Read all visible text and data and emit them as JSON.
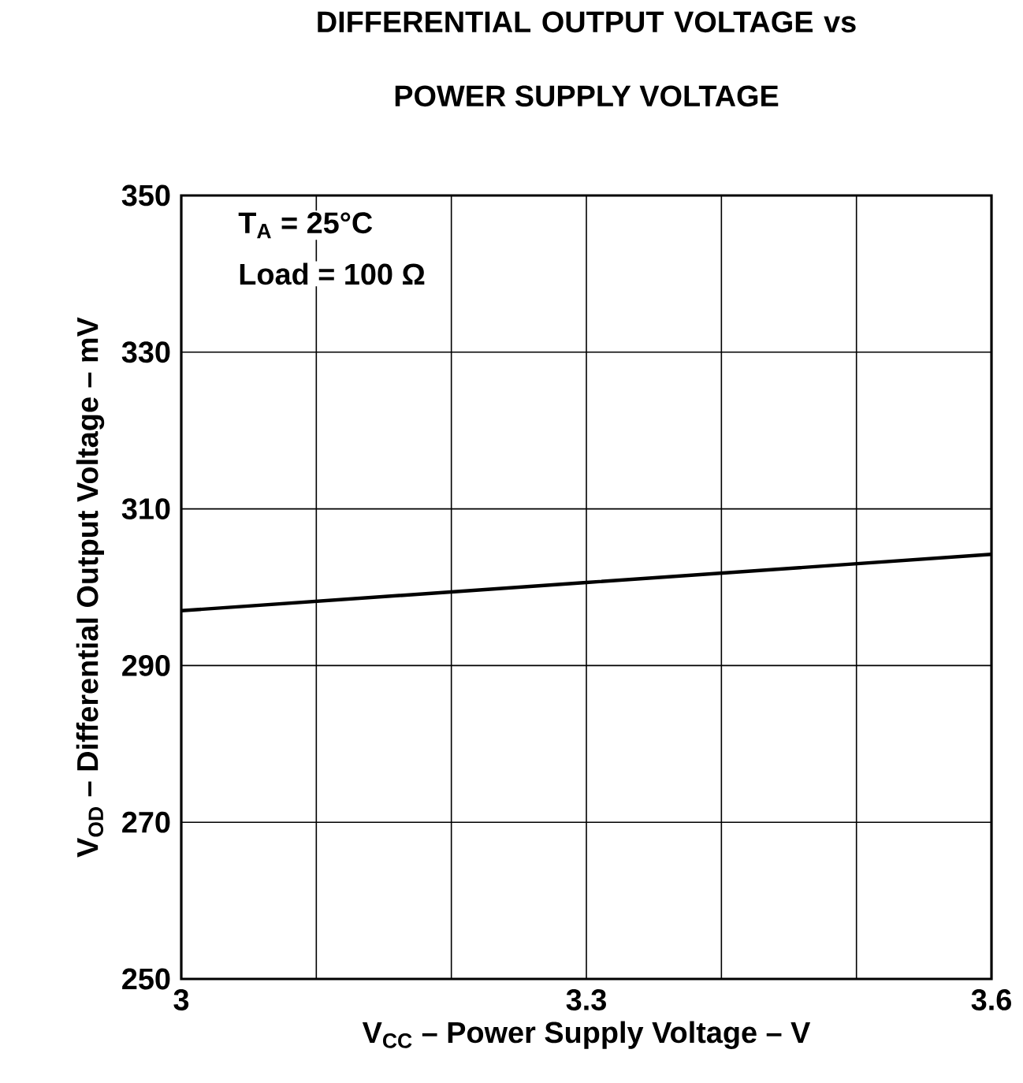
{
  "chart_data": {
    "type": "line",
    "title": "DIFFERENTIAL OUTPUT VOLTAGE vs",
    "subtitle": "POWER SUPPLY VOLTAGE",
    "xlabel": "V$_{CC}$ – Power Supply Voltage – V",
    "ylabel": "V$_{OD}$ – Differential Output Voltage – mV",
    "annotations": [
      "T$_{A}$ = 25°C",
      "Load = 100 Ω"
    ],
    "series": [
      {
        "color": "#000000",
        "x": [
          3,
          3.3,
          3.6
        ],
        "values": [
          297,
          300.6,
          304.2
        ]
      }
    ],
    "xlim": [
      3,
      3.6
    ],
    "xticks": [
      3,
      {
        "value": 3.1,
        "label": null
      },
      {
        "value": 3.2,
        "label": null
      },
      3.3,
      {
        "value": 3.4,
        "label": null
      },
      {
        "value": 3.5,
        "label": null
      },
      3.6
    ],
    "ylim": [
      250,
      350
    ],
    "yticks": [
      250,
      270,
      290,
      310,
      330,
      350
    ],
    "grid": true,
    "marker": "none",
    "line_style": "solid"
  }
}
